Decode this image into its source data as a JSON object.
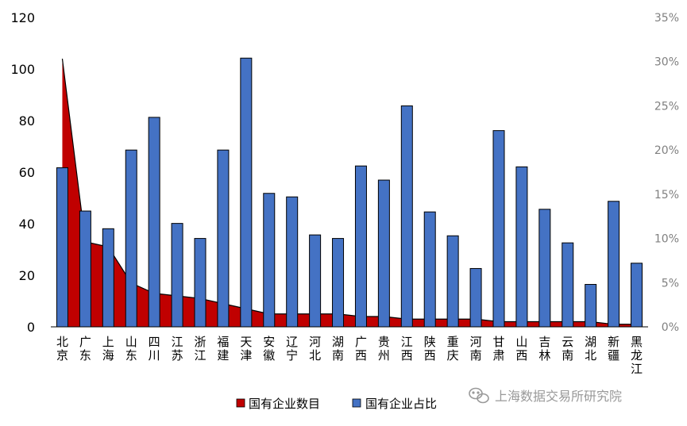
{
  "chart_data": {
    "type": "bar",
    "categories": [
      "北京",
      "广东",
      "上海",
      "山东",
      "四川",
      "江苏",
      "浙江",
      "福建",
      "天津",
      "安徽",
      "辽宁",
      "河北",
      "湖南",
      "广西",
      "贵州",
      "江西",
      "陕西",
      "重庆",
      "河南",
      "甘肃",
      "山西",
      "吉林",
      "云南",
      "湖北",
      "新疆",
      "黑龙江"
    ],
    "series": [
      {
        "name": "国有企业数目",
        "type": "area",
        "axis": "left",
        "color": "#C00000",
        "values": [
          104,
          33,
          31,
          17,
          13,
          12,
          11,
          9,
          7,
          5,
          5,
          5,
          5,
          4,
          4,
          3,
          3,
          3,
          3,
          2,
          2,
          2,
          2,
          2,
          1,
          1
        ]
      },
      {
        "name": "国有企业占比",
        "type": "bar",
        "axis": "right",
        "color": "#4472C4",
        "values": [
          0.18,
          0.131,
          0.111,
          0.2,
          0.237,
          0.117,
          0.1,
          0.2,
          0.304,
          0.151,
          0.147,
          0.104,
          0.1,
          0.182,
          0.166,
          0.25,
          0.13,
          0.103,
          0.066,
          0.222,
          0.181,
          0.133,
          0.095,
          0.048,
          0.142,
          0.072
        ]
      }
    ],
    "y_left": {
      "range": [
        0,
        120
      ],
      "ticks": [
        0,
        20,
        40,
        60,
        80,
        100,
        120
      ],
      "labels": [
        "0",
        "20",
        "40",
        "60",
        "80",
        "100",
        "120"
      ]
    },
    "y_right": {
      "range": [
        0,
        0.35
      ],
      "ticks": [
        0,
        0.05,
        0.1,
        0.15,
        0.2,
        0.25,
        0.3,
        0.35
      ],
      "labels": [
        "0%",
        "5%",
        "10%",
        "15%",
        "20%",
        "25%",
        "30%",
        "35%"
      ]
    },
    "title": "",
    "xlabel": "",
    "ylabel": "",
    "grid": false,
    "legend": {
      "position": "bottom",
      "items": [
        "国有企业数目",
        "国有企业占比"
      ]
    }
  },
  "watermark": {
    "text": "上海数据交易所研究院",
    "icon": "wechat-icon"
  }
}
